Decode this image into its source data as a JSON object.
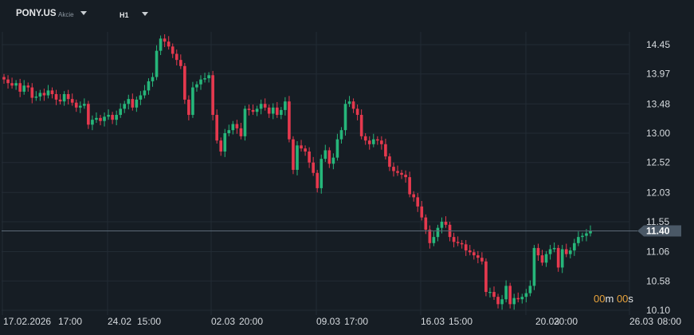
{
  "header": {
    "symbol": "PONY.US",
    "symbol_type": "Akcie",
    "timeframe": "H1"
  },
  "countdown": {
    "minutes": "00",
    "minutes_unit": "m",
    "seconds": "00",
    "seconds_unit": "s"
  },
  "colors": {
    "background": "#161d24",
    "up": "#26b67a",
    "down": "#e5394e",
    "grid": "#222b34",
    "price_line": "#5c6a78",
    "price_tag": "#4a5866",
    "countdown": "#e8a33c"
  },
  "chart_data": {
    "type": "candlestick",
    "symbol": "PONY.US",
    "timeframe": "H1",
    "y_ticks": [
      "14.45",
      "13.97",
      "13.48",
      "13.00",
      "12.52",
      "12.03",
      "11.55",
      "11.06",
      "10.58",
      "10.10"
    ],
    "x_ticks": [
      "17.02.2026",
      "17:00",
      "24.02",
      "15:00",
      "02.03",
      "20:00",
      "09.03",
      "17:00",
      "16.03",
      "15:00",
      "20.03",
      "20:00",
      "26.03",
      "08:00"
    ],
    "current_price": "11.40",
    "ylim": [
      10.1,
      14.62
    ],
    "grid": true,
    "close_series": [
      13.88,
      13.82,
      13.78,
      13.82,
      13.68,
      13.78,
      13.75,
      13.58,
      13.6,
      13.66,
      13.62,
      13.7,
      13.64,
      13.55,
      13.52,
      13.64,
      13.56,
      13.5,
      13.42,
      13.45,
      13.48,
      13.14,
      13.22,
      13.25,
      13.2,
      13.27,
      13.3,
      13.22,
      13.3,
      13.4,
      13.48,
      13.56,
      13.42,
      13.55,
      13.62,
      13.7,
      13.85,
      13.92,
      14.35,
      14.55,
      14.5,
      14.42,
      14.3,
      14.2,
      14.1,
      13.55,
      13.3,
      13.75,
      13.8,
      13.88,
      13.9,
      13.95,
      13.3,
      12.88,
      12.7,
      13.0,
      13.05,
      13.15,
      13.08,
      12.95,
      13.4,
      13.38,
      13.35,
      13.4,
      13.48,
      13.42,
      13.32,
      13.42,
      13.3,
      13.38,
      13.52,
      12.9,
      12.4,
      12.8,
      12.75,
      12.7,
      12.52,
      12.35,
      12.1,
      12.58,
      12.72,
      12.5,
      12.6,
      12.9,
      13.05,
      13.48,
      13.52,
      13.4,
      13.3,
      12.95,
      12.88,
      12.82,
      12.9,
      12.88,
      12.82,
      12.62,
      12.45,
      12.38,
      12.35,
      12.32,
      12.28,
      12.0,
      11.95,
      11.8,
      11.62,
      11.42,
      11.2,
      11.3,
      11.45,
      11.55,
      11.5,
      11.3,
      11.22,
      11.2,
      11.18,
      11.08,
      11.05,
      11.0,
      10.96,
      10.9,
      10.4,
      10.4,
      10.32,
      10.2,
      10.28,
      10.5,
      10.2,
      10.3,
      10.28,
      10.32,
      10.38,
      10.5,
      11.12,
      11.0,
      10.88,
      11.02,
      11.1,
      11.12,
      10.8,
      11.1,
      11.02,
      11.08,
      11.2,
      11.3,
      11.32,
      11.36,
      11.4
    ]
  }
}
